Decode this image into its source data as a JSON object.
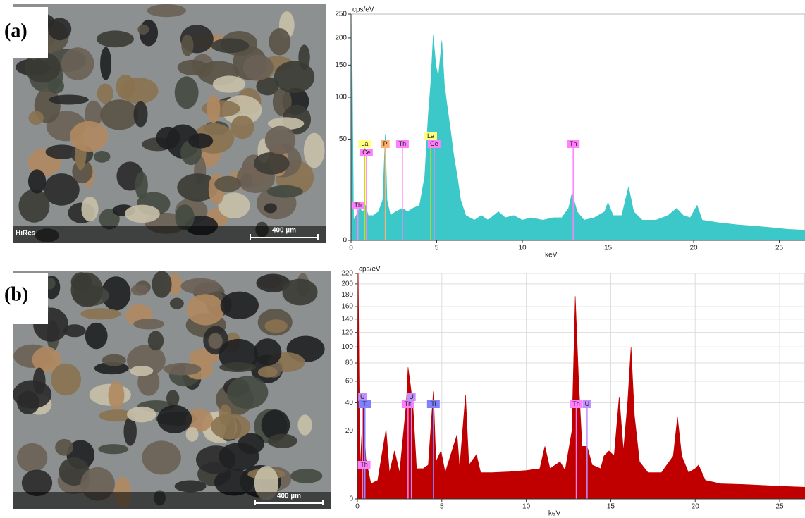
{
  "panels": [
    {
      "label": "(a)",
      "caption": "HiRes",
      "scale_bar": "400 µm"
    },
    {
      "label": "(b)",
      "scale_bar": "400 µm"
    }
  ],
  "chart_data": [
    {
      "type": "area",
      "ylabel": "cps/eV",
      "xlabel": "keV",
      "yscale": "sqrt",
      "color": "#3cc8c8",
      "grid": false,
      "xlim": [
        0,
        26.5
      ],
      "ylim": [
        0,
        250
      ],
      "xticks": [
        0,
        5,
        10,
        15,
        20,
        25
      ],
      "yticks": [
        0,
        50,
        100,
        150,
        200,
        250
      ],
      "x": [
        0,
        0.05,
        0.15,
        0.3,
        0.5,
        0.7,
        0.85,
        1.0,
        1.3,
        1.6,
        1.85,
        2.0,
        2.1,
        2.3,
        2.6,
        3.0,
        3.3,
        3.6,
        4.0,
        4.3,
        4.5,
        4.65,
        4.8,
        4.95,
        5.1,
        5.3,
        5.45,
        5.6,
        5.8,
        6.0,
        6.2,
        6.4,
        6.7,
        7.2,
        7.6,
        8.0,
        8.6,
        9.0,
        9.5,
        10.0,
        10.5,
        11.2,
        11.8,
        12.3,
        12.7,
        12.9,
        13.2,
        13.6,
        14.2,
        14.8,
        15.0,
        15.3,
        15.8,
        16.2,
        16.5,
        17.0,
        17.8,
        18.5,
        19.0,
        19.4,
        19.8,
        20.2,
        20.5,
        21.5,
        22.5,
        23.5,
        24.5,
        25.5,
        26.5
      ],
      "values": [
        0,
        230,
        2,
        3,
        5,
        4,
        6,
        3,
        3,
        4,
        8,
        55,
        8,
        3,
        4,
        5,
        4,
        5,
        6,
        20,
        75,
        120,
        205,
        150,
        130,
        195,
        120,
        90,
        60,
        35,
        20,
        8,
        3,
        2,
        3,
        2,
        4,
        2.5,
        3,
        2,
        2.5,
        2,
        2.5,
        2.5,
        5,
        11,
        4,
        2,
        2.5,
        4,
        7,
        3,
        3,
        14,
        4,
        2,
        2,
        3,
        5,
        3,
        2.5,
        6,
        2,
        1.5,
        1.2,
        1,
        0.8,
        0.6,
        0.5
      ],
      "markers": [
        {
          "label": "La",
          "x": 0.8,
          "color": "#ffff80"
        },
        {
          "label": "Ce",
          "x": 0.9,
          "color": "#ff80ff"
        },
        {
          "label": "P",
          "x": 2.0,
          "color": "#ffb070"
        },
        {
          "label": "Th",
          "x": 3.0,
          "color": "#ff80ff"
        },
        {
          "label": "La",
          "x": 4.65,
          "color": "#ffff80"
        },
        {
          "label": "Ce",
          "x": 4.85,
          "color": "#ff80ff"
        },
        {
          "label": "Th",
          "x": 12.97,
          "color": "#ff80ff"
        },
        {
          "label": "Th",
          "x": 0.4,
          "color": "#ff80ff"
        }
      ]
    },
    {
      "type": "area",
      "ylabel": "cps/eV",
      "xlabel": "keV",
      "yscale": "sqrt",
      "color": "#c00000",
      "grid": true,
      "xlim": [
        0,
        26.5
      ],
      "ylim": [
        0,
        220
      ],
      "xticks": [
        0,
        5,
        10,
        15,
        20,
        25
      ],
      "yticks": [
        0,
        20,
        40,
        60,
        80,
        100,
        120,
        140,
        160,
        180,
        200,
        220
      ],
      "x": [
        0,
        0.05,
        0.15,
        0.35,
        0.5,
        0.8,
        1.2,
        1.7,
        1.9,
        2.2,
        2.5,
        2.9,
        3.0,
        3.15,
        3.3,
        3.5,
        3.9,
        4.2,
        4.5,
        4.65,
        4.95,
        5.2,
        5.9,
        6.05,
        6.4,
        6.6,
        7.05,
        7.3,
        8.0,
        9.0,
        10.0,
        10.8,
        11.1,
        11.4,
        12.0,
        12.3,
        12.7,
        12.9,
        13.1,
        13.3,
        13.6,
        13.9,
        14.4,
        14.6,
        14.9,
        15.2,
        15.5,
        15.75,
        16.0,
        16.2,
        16.4,
        16.7,
        17.2,
        18.0,
        18.7,
        18.95,
        19.2,
        19.6,
        20.0,
        20.2,
        20.6,
        21.5,
        23,
        25,
        26.5
      ],
      "values": [
        0,
        220,
        3,
        40,
        7,
        1,
        1.5,
        21,
        3,
        10,
        3,
        40,
        75,
        55,
        35,
        4,
        4,
        5,
        50,
        6,
        10,
        3,
        18,
        4,
        47,
        5,
        8.5,
        3,
        3,
        3.2,
        3.5,
        4,
        12,
        4,
        6,
        3.5,
        20,
        178,
        60,
        12,
        12,
        5,
        4,
        8,
        10,
        8,
        45,
        10,
        40,
        100,
        30,
        6,
        3,
        3,
        8,
        29,
        8,
        3,
        4,
        5,
        1.5,
        1,
        0.9,
        0.7,
        0.6
      ],
      "markers": [
        {
          "label": "U",
          "x": 0.3,
          "color": "#c090ff"
        },
        {
          "label": "Ti",
          "x": 0.45,
          "color": "#8080ff"
        },
        {
          "label": "Th",
          "x": 0.4,
          "color": "#ff80ff"
        },
        {
          "label": "Th",
          "x": 3.0,
          "color": "#ff80ff"
        },
        {
          "label": "U",
          "x": 3.2,
          "color": "#c090ff"
        },
        {
          "label": "Ti",
          "x": 4.5,
          "color": "#8080ff"
        },
        {
          "label": "Th",
          "x": 12.96,
          "color": "#ff80ff"
        },
        {
          "label": "U",
          "x": 13.6,
          "color": "#c090ff"
        }
      ]
    }
  ]
}
